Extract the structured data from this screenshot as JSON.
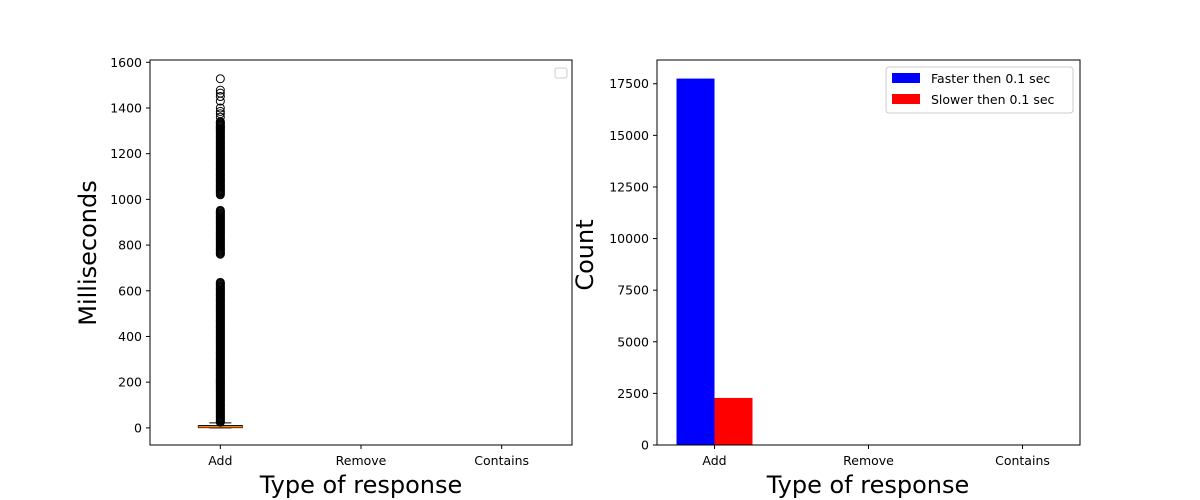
{
  "chart_data": [
    {
      "type": "box",
      "xlabel": "Type of response",
      "ylabel": "Milliseconds",
      "categories": [
        "Add",
        "Remove",
        "Contains"
      ],
      "ylim": [
        -75,
        1610
      ],
      "yticks": [
        0,
        200,
        400,
        600,
        800,
        1000,
        1200,
        1400,
        1600
      ],
      "box": {
        "category": "Add",
        "q1": 1,
        "median": 5,
        "q3": 10,
        "whisker_low": 0,
        "whisker_high": 22
      },
      "outlier_bands": [
        [
          25,
          640
        ],
        [
          760,
          955
        ],
        [
          1020,
          1340
        ]
      ],
      "outliers": [
        1360,
        1375,
        1385,
        1400,
        1430,
        1450,
        1465,
        1478,
        1528
      ],
      "legend": "empty box, top-right",
      "colors": {
        "median": "#ff7f0e",
        "box": "#000000"
      }
    },
    {
      "type": "bar",
      "xlabel": "Type of response",
      "ylabel": "Count",
      "categories": [
        "Add",
        "Remove",
        "Contains"
      ],
      "ylim": [
        0,
        18650
      ],
      "yticks": [
        0,
        2500,
        5000,
        7500,
        10000,
        12500,
        15000,
        17500
      ],
      "series": [
        {
          "name": "Faster then 0.1 sec",
          "color": "#0000ff",
          "values": [
            17750,
            0,
            0
          ]
        },
        {
          "name": "Slower then 0.1 sec",
          "color": "#ff0000",
          "values": [
            2280,
            0,
            0
          ]
        }
      ],
      "legend": "top-right"
    }
  ]
}
